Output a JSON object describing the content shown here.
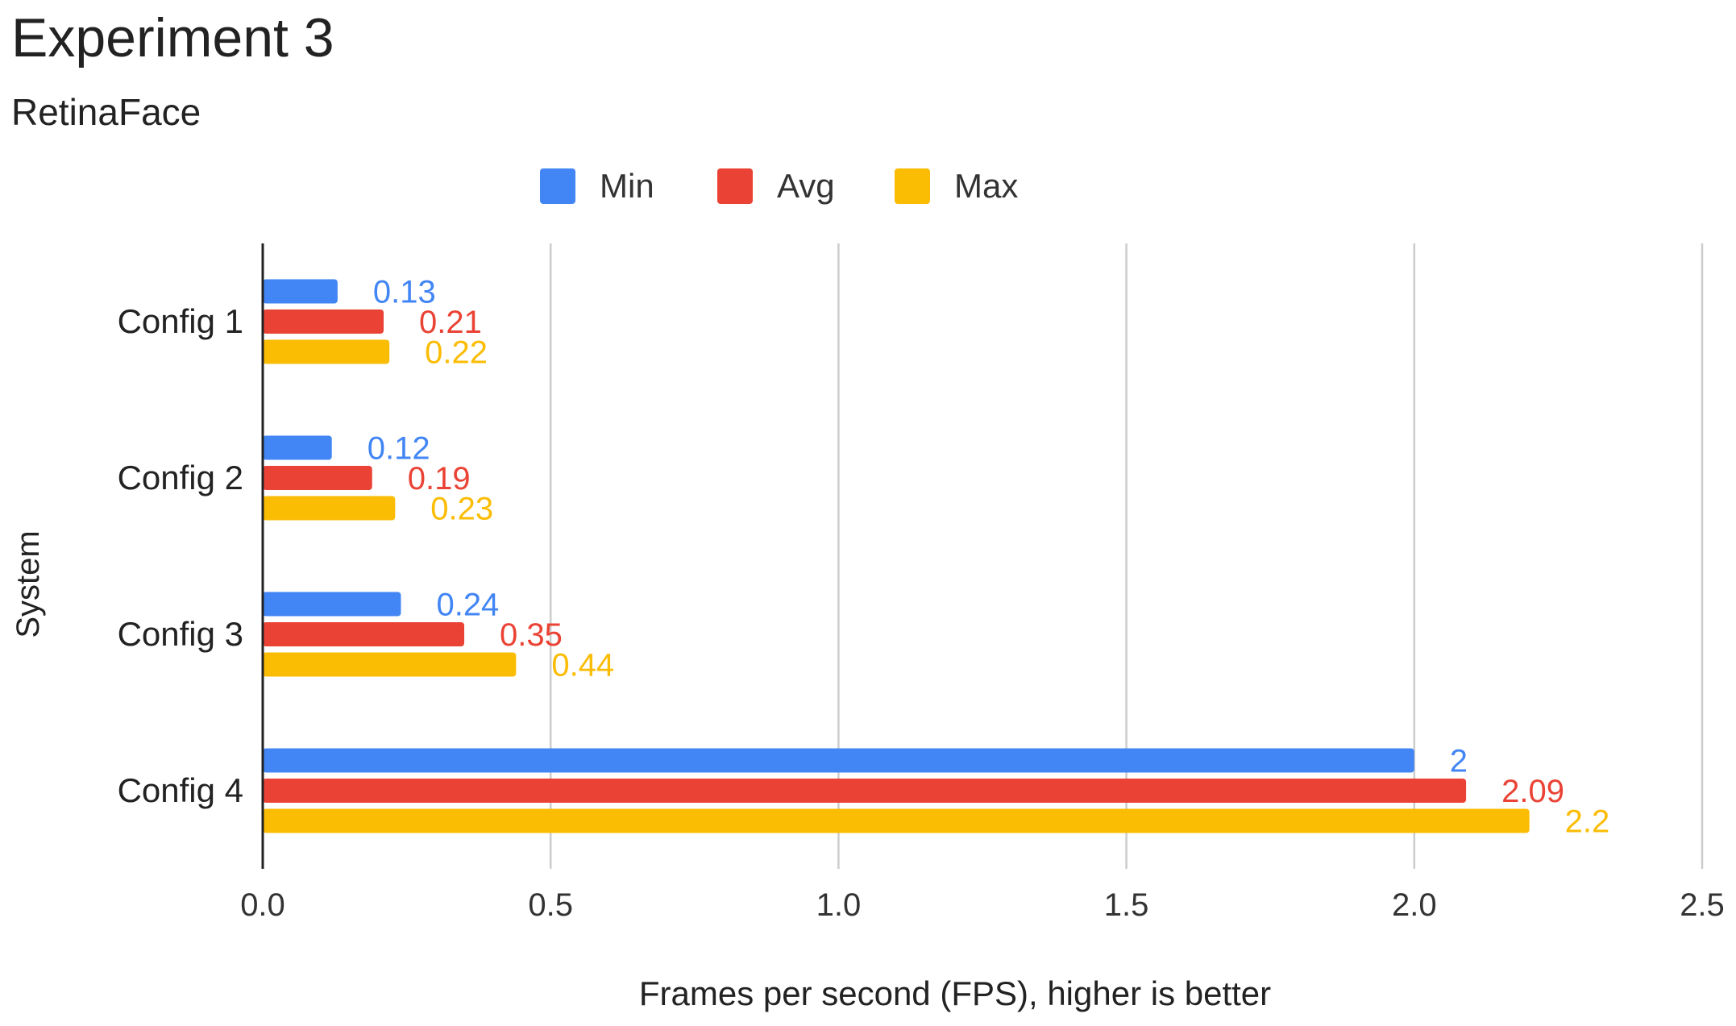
{
  "chart_data": {
    "type": "bar",
    "orientation": "horizontal",
    "title": "Experiment 3",
    "subtitle": "RetinaFace",
    "xlabel": "Frames per second (FPS), higher is better",
    "ylabel": "System",
    "xlim": [
      0,
      2.5
    ],
    "xticks": [
      "0.0",
      "0.5",
      "1.0",
      "1.5",
      "2.0",
      "2.5"
    ],
    "xtick_values": [
      0,
      0.5,
      1.0,
      1.5,
      2.0,
      2.5
    ],
    "grid": true,
    "legend_position": "top-center",
    "categories": [
      "Config 1",
      "Config 2",
      "Config 3",
      "Config 4"
    ],
    "series": [
      {
        "name": "Min",
        "color": "#4285F4",
        "values": [
          0.13,
          0.12,
          0.24,
          2
        ],
        "labels": [
          "0.13",
          "0.12",
          "0.24",
          "2"
        ]
      },
      {
        "name": "Avg",
        "color": "#EA4335",
        "values": [
          0.21,
          0.19,
          0.35,
          2.09
        ],
        "labels": [
          "0.21",
          "0.19",
          "0.35",
          "2.09"
        ]
      },
      {
        "name": "Max",
        "color": "#FBBC04",
        "values": [
          0.22,
          0.23,
          0.44,
          2.2
        ],
        "labels": [
          "0.22",
          "0.23",
          "0.44",
          "2.2"
        ]
      }
    ]
  }
}
